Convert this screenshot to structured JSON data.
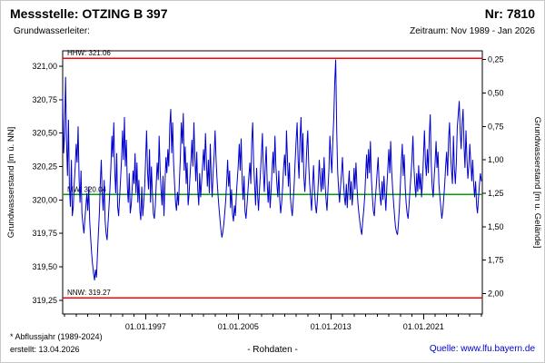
{
  "header": {
    "station_label": "Messstelle: OTZING B 397",
    "number_label": "Nr: 7810",
    "aquifer_label": "Grundwasserleiter:",
    "period_label": "Zeitraum: Nov 1989 - Jan 2026"
  },
  "footer": {
    "footnote": "* Abflussjahr (1989-2024)",
    "created": "erstellt: 13.04.2026",
    "data_type": "- Rohdaten -",
    "source": "Quelle: www.lfu.bayern.de",
    "source_color": "#0000d0"
  },
  "chart_data": {
    "type": "line",
    "title": "",
    "xlabel": "",
    "ylabel_left": "Grundwasserstand [m ü. NN]",
    "ylabel_right": "Grundwasserstand [m u. Gelände]",
    "ylim_left": [
      319.148,
      321.115
    ],
    "yticks_left": [
      319.25,
      319.5,
      319.75,
      320.0,
      320.25,
      320.5,
      320.75,
      321.0
    ],
    "ytick_labels_left": [
      "319,25",
      "319,50",
      "319,75",
      "320,00",
      "320,25",
      "320,50",
      "320,75",
      "321,00"
    ],
    "right_axis": {
      "ground_elevation": 321.3,
      "ticks": [
        0.25,
        0.5,
        0.75,
        1.0,
        1.25,
        1.5,
        1.75,
        2.0
      ],
      "tick_labels": [
        "0,25",
        "0,50",
        "0,75",
        "1,00",
        "1,25",
        "1,50",
        "1,75",
        "2,00"
      ]
    },
    "xlim": [
      1989.8333,
      2026.08
    ],
    "xticks": [
      1997,
      2005,
      2013,
      2021
    ],
    "xtick_labels": [
      "01.01.1997",
      "01.01.2005",
      "01.01.2013",
      "01.01.2021"
    ],
    "minor_xticks": {
      "start": 1990,
      "end": 2026,
      "step": 1
    },
    "grid": false,
    "legend": false,
    "reference_lines": [
      {
        "name": "HHW",
        "label": "HHW: 321.06",
        "value": 321.06,
        "color": "#ff0000"
      },
      {
        "name": "MW",
        "label": "MW: 320.04",
        "value": 320.04,
        "color": "#00a000"
      },
      {
        "name": "NNW",
        "label": "NNW: 319.27",
        "value": 319.27,
        "color": "#ff0000"
      }
    ],
    "series": [
      {
        "name": "Grundwasserstand Rohdaten",
        "color": "#0000cc",
        "start": {
          "year": 1989,
          "month": 11
        },
        "interval_months": 1,
        "values": [
          320.78,
          320.35,
          320.5,
          320.92,
          320.45,
          320.18,
          320.6,
          320.1,
          319.95,
          320.3,
          319.88,
          319.95,
          320.12,
          320.25,
          320.42,
          320.28,
          320.55,
          320.15,
          319.98,
          320.22,
          319.9,
          319.82,
          319.75,
          319.85,
          319.95,
          320.05,
          319.92,
          320.1,
          319.85,
          319.72,
          319.6,
          319.52,
          319.45,
          319.4,
          319.48,
          319.42,
          319.58,
          319.75,
          319.9,
          320.12,
          320.3,
          320.05,
          319.92,
          320.15,
          319.85,
          319.75,
          319.7,
          319.82,
          319.95,
          320.08,
          320.25,
          320.48,
          320.32,
          320.58,
          320.2,
          320.05,
          320.35,
          319.95,
          319.88,
          320.02,
          320.15,
          320.3,
          320.52,
          320.3,
          320.62,
          320.25,
          320.45,
          320.1,
          319.98,
          320.2,
          319.9,
          319.96,
          320.08,
          320.22,
          320.12,
          320.35,
          320.05,
          320.28,
          319.98,
          320.15,
          319.92,
          319.85,
          320.1,
          319.88,
          319.98,
          320.1,
          320.3,
          320.52,
          320.2,
          320.08,
          320.38,
          319.98,
          320.25,
          320.05,
          319.9,
          319.86,
          319.96,
          320.12,
          320.28,
          320.15,
          320.48,
          320.22,
          320.08,
          319.96,
          320.18,
          319.88,
          320.12,
          320.32,
          320.2,
          320.38,
          320.25,
          320.55,
          320.68,
          320.35,
          320.58,
          320.28,
          320.12,
          319.98,
          319.92,
          320.06,
          319.96,
          320.14,
          320.32,
          320.58,
          320.42,
          320.65,
          320.22,
          320.4,
          320.12,
          320.28,
          319.96,
          320.04,
          320.18,
          320.3,
          320.45,
          320.25,
          320.58,
          320.32,
          320.14,
          320.36,
          320.08,
          319.96,
          320.2,
          320.02,
          320.14,
          320.26,
          320.38,
          320.22,
          320.5,
          320.28,
          320.1,
          320.3,
          320.05,
          320.42,
          320.16,
          320.02,
          320.22,
          320.34,
          320.52,
          320.3,
          320.16,
          320.04,
          319.94,
          319.86,
          319.78,
          319.72,
          319.76,
          319.82,
          319.9,
          320.0,
          320.14,
          320.3,
          320.1,
          320.22,
          319.94,
          320.08,
          319.9,
          319.84,
          319.96,
          319.88,
          320.04,
          320.16,
          320.26,
          320.42,
          320.22,
          320.46,
          320.14,
          320.0,
          320.18,
          319.92,
          319.86,
          319.96,
          320.06,
          320.18,
          320.28,
          320.12,
          320.44,
          320.58,
          320.26,
          320.1,
          319.96,
          320.24,
          320.04,
          319.92,
          320.08,
          320.2,
          320.34,
          320.5,
          320.22,
          320.06,
          320.26,
          320.4,
          320.12,
          319.98,
          320.14,
          319.94,
          320.06,
          320.22,
          320.36,
          320.2,
          320.48,
          320.26,
          320.12,
          320.02,
          320.22,
          320.0,
          319.9,
          319.98,
          320.1,
          320.24,
          320.34,
          320.18,
          320.52,
          320.3,
          320.1,
          320.28,
          320.02,
          319.94,
          319.88,
          320.0,
          320.12,
          320.3,
          320.44,
          320.58,
          320.3,
          320.16,
          320.46,
          320.62,
          320.28,
          320.5,
          320.18,
          320.06,
          320.2,
          320.38,
          320.52,
          320.26,
          320.12,
          320.02,
          319.92,
          320.1,
          320.26,
          320.08,
          319.96,
          319.9,
          320.0,
          320.14,
          320.3,
          320.16,
          320.06,
          320.24,
          320.08,
          320.32,
          320.12,
          320.0,
          319.92,
          320.08,
          320.24,
          320.48,
          320.32,
          320.2,
          320.44,
          320.62,
          320.88,
          321.05,
          320.52,
          320.22,
          320.08,
          319.98,
          320.1,
          320.2,
          320.32,
          320.14,
          320.02,
          319.96,
          320.12,
          319.94,
          320.1,
          320.22,
          320.0,
          320.14,
          319.96,
          320.06,
          320.24,
          320.08,
          320.28,
          320.1,
          319.98,
          319.9,
          319.84,
          319.78,
          319.74,
          319.84,
          319.92,
          320.02,
          320.18,
          320.34,
          320.16,
          320.38,
          320.2,
          320.44,
          320.16,
          320.02,
          319.92,
          319.88,
          320.0,
          320.1,
          320.22,
          320.32,
          320.12,
          320.02,
          319.96,
          320.14,
          320.0,
          320.18,
          320.04,
          319.92,
          320.1,
          320.24,
          320.38,
          320.2,
          320.44,
          320.22,
          320.08,
          319.98,
          319.88,
          319.8,
          319.76,
          319.74,
          319.82,
          319.94,
          320.12,
          320.28,
          320.42,
          320.18,
          320.34,
          320.1,
          319.98,
          319.9,
          319.86,
          319.96,
          320.08,
          320.18,
          320.3,
          320.48,
          320.26,
          320.12,
          320.02,
          320.2,
          320.06,
          320.26,
          320.08,
          320.2,
          320.02,
          320.14,
          320.34,
          320.52,
          320.28,
          320.18,
          320.38,
          320.2,
          320.48,
          320.64,
          320.28,
          320.1,
          320.02,
          320.16,
          320.28,
          320.44,
          320.24,
          320.36,
          320.12,
          320.02,
          319.94,
          319.86,
          319.92,
          320.02,
          320.12,
          320.26,
          320.36,
          320.18,
          320.46,
          320.58,
          320.34,
          320.22,
          320.12,
          320.48,
          320.24,
          320.12,
          320.28,
          320.54,
          320.64,
          320.74,
          320.52,
          320.38,
          320.56,
          320.68,
          320.4,
          320.24,
          320.52,
          320.32,
          320.16,
          320.26,
          320.42,
          320.28,
          320.14,
          320.3,
          320.12,
          320.02,
          320.14,
          319.96,
          319.9,
          320.02,
          320.12,
          320.2,
          320.14
        ]
      }
    ]
  }
}
